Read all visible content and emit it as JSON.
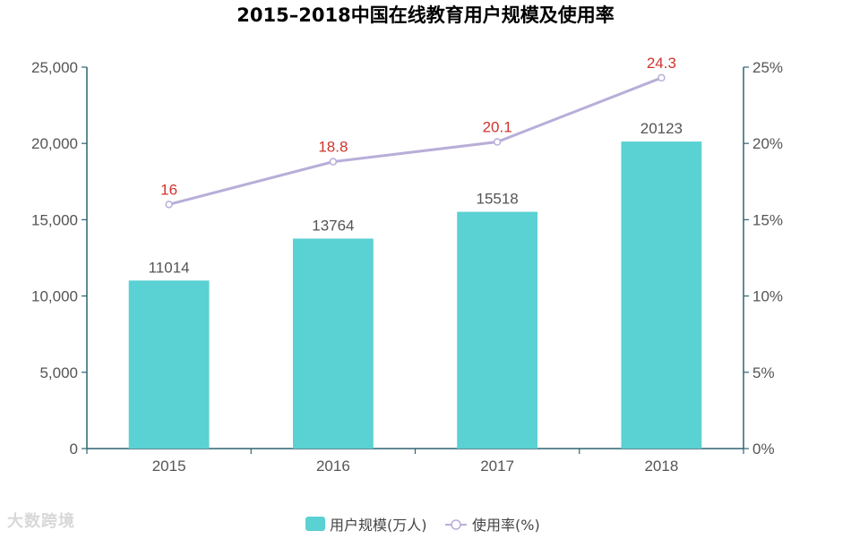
{
  "watermark": "大数跨境",
  "colors": {
    "bar": "#5ad1d3",
    "line": "#b8aed8",
    "line_label": "#d0342c",
    "axis": "#2f6472",
    "title": "#1f5c85",
    "text": "#555555"
  },
  "chart_data": {
    "type": "bar",
    "title": "2015–2018中国在线教育用户规模及使用率",
    "categories": [
      "2015",
      "2016",
      "2017",
      "2018"
    ],
    "ylim": [
      0,
      25000
    ],
    "y2lim": [
      0,
      25
    ],
    "yticks": [
      "0",
      "5,000",
      "10,000",
      "15,000",
      "20,000",
      "25,000"
    ],
    "y2ticks": [
      "0%",
      "5%",
      "10%",
      "15%",
      "20%",
      "25%"
    ],
    "series": [
      {
        "name": "用户规模(万人)",
        "type": "bar",
        "axis": "left",
        "values": [
          11014,
          13764,
          15518,
          20123
        ],
        "labels": [
          "11014",
          "13764",
          "15518",
          "20123"
        ]
      },
      {
        "name": "使用率(%)",
        "type": "line",
        "axis": "right",
        "values": [
          16,
          18.8,
          20.1,
          24.3
        ],
        "labels": [
          "16",
          "18.8",
          "20.1",
          "24.3"
        ]
      }
    ],
    "legend": "bottom-center",
    "grid": false
  }
}
